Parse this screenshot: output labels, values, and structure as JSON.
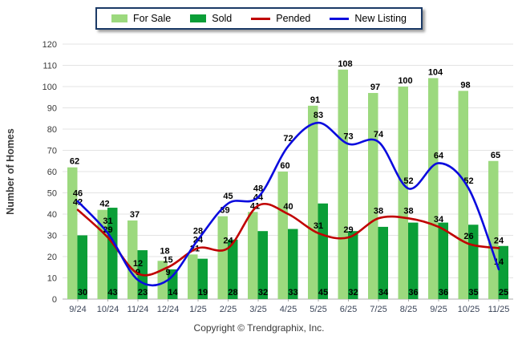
{
  "footer": "Copyright © Trendgraphix, Inc.",
  "chart_data": {
    "type": "bar+line",
    "title": "",
    "ylabel": "Number of Homes",
    "xlabel": "",
    "ylim": [
      0,
      120
    ],
    "ytick_step": 10,
    "grid": true,
    "legend_position": "top-center",
    "categories": [
      "9/24",
      "10/24",
      "11/24",
      "12/24",
      "1/25",
      "2/25",
      "3/25",
      "4/25",
      "5/25",
      "6/25",
      "7/25",
      "8/25",
      "9/25",
      "10/25",
      "11/25"
    ],
    "series": [
      {
        "name": "For Sale",
        "type": "bar",
        "color": "#9CD97E",
        "values": [
          62,
          42,
          37,
          18,
          21,
          39,
          41,
          60,
          91,
          108,
          97,
          100,
          104,
          98,
          65
        ]
      },
      {
        "name": "Sold",
        "type": "bar",
        "color": "#0A9E37",
        "values": [
          30,
          43,
          23,
          14,
          19,
          28,
          32,
          33,
          45,
          32,
          34,
          36,
          36,
          35,
          25
        ]
      },
      {
        "name": "Pended",
        "type": "line",
        "color": "#C00000",
        "values": [
          42,
          29,
          12,
          15,
          24,
          24,
          44,
          40,
          31,
          29,
          38,
          38,
          34,
          26,
          24
        ]
      },
      {
        "name": "New Listing",
        "type": "line",
        "color": "#0B0BDE",
        "values": [
          46,
          31,
          9,
          9,
          28,
          45,
          48,
          72,
          83,
          73,
          74,
          52,
          64,
          52,
          14
        ]
      }
    ],
    "colors": {
      "grid": "#E3E3E3",
      "axis": "#ABABAB",
      "legend_border": "#1B3A66"
    }
  }
}
